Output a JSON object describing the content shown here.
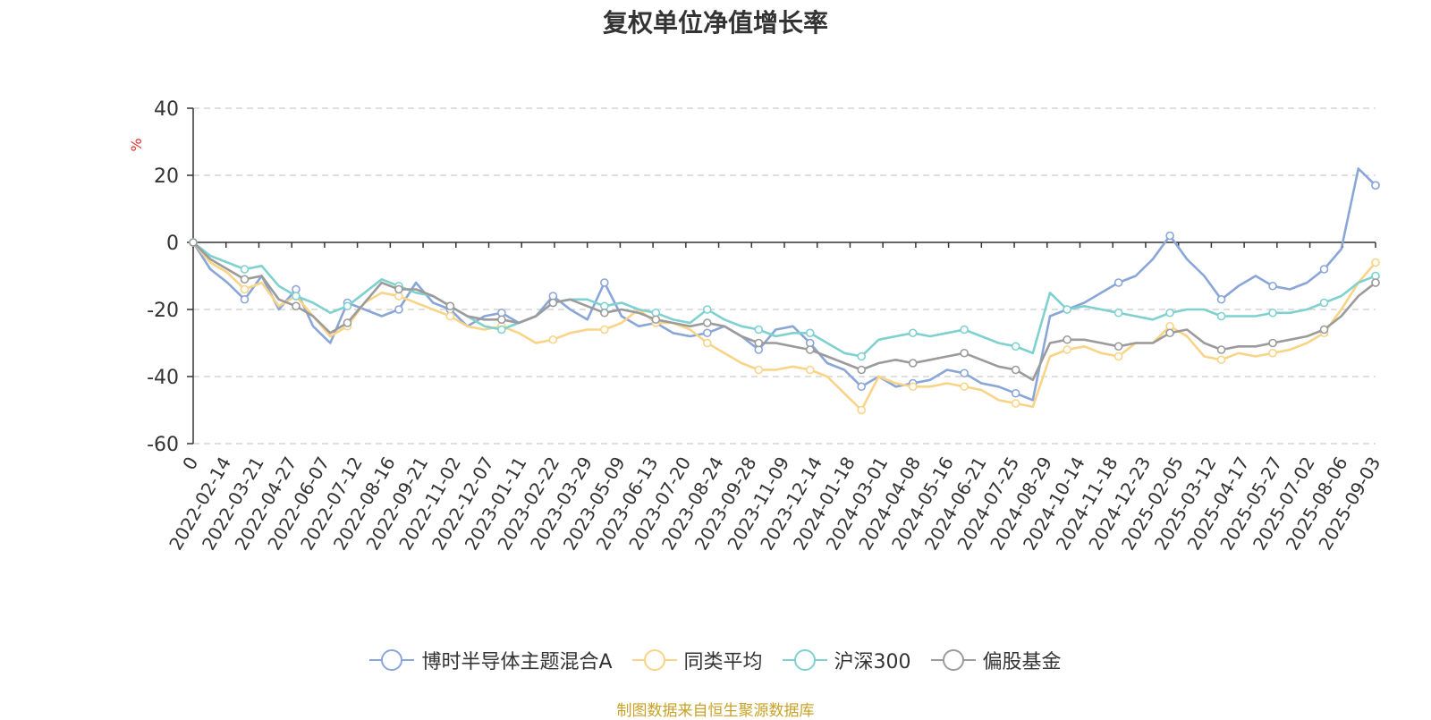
{
  "title": "复权单位净值增长率",
  "source": "制图数据来自恒生聚源数据库",
  "chart_data": {
    "type": "line",
    "title": "复权单位净值增长率",
    "ylabel": "%",
    "ylim": [
      -60,
      40
    ],
    "yticks": [
      -60,
      -40,
      -20,
      0,
      20,
      40
    ],
    "grid": true,
    "legend_position": "bottom",
    "x_labels": [
      "0",
      "2022-02-14",
      "2022-03-21",
      "2022-04-27",
      "2022-06-07",
      "2022-07-12",
      "2022-08-16",
      "2022-09-21",
      "2022-11-02",
      "2022-12-07",
      "2023-01-11",
      "2023-02-22",
      "2023-03-29",
      "2023-05-09",
      "2023-06-13",
      "2023-07-20",
      "2023-08-24",
      "2023-09-28",
      "2023-11-09",
      "2023-12-14",
      "2024-01-18",
      "2024-03-01",
      "2024-04-08",
      "2024-05-16",
      "2024-06-21",
      "2024-07-25",
      "2024-08-29",
      "2024-10-14",
      "2024-11-18",
      "2024-12-23",
      "2025-02-05",
      "2025-03-12",
      "2025-04-17",
      "2025-05-27",
      "2025-07-02",
      "2025-08-06",
      "2025-09-03"
    ],
    "series": [
      {
        "name": "博时半导体主题混合A",
        "color": "#8aa6d8",
        "values": [
          0,
          -8,
          -12,
          -17,
          -10,
          -20,
          -14,
          -25,
          -30,
          -18,
          -20,
          -22,
          -20,
          -12,
          -18,
          -20,
          -25,
          -22,
          -21,
          -24,
          -22,
          -16,
          -20,
          -23,
          -12,
          -22,
          -25,
          -24,
          -27,
          -28,
          -27,
          -25,
          -28,
          -32,
          -26,
          -25,
          -30,
          -36,
          -38,
          -43,
          -40,
          -43,
          -42,
          -41,
          -38,
          -39,
          -42,
          -43,
          -45,
          -47,
          -22,
          -20,
          -18,
          -15,
          -12,
          -10,
          -5,
          2,
          -5,
          -10,
          -17,
          -13,
          -10,
          -13,
          -14,
          -12,
          -8,
          -2,
          22,
          17
        ]
      },
      {
        "name": "同类平均",
        "color": "#f9d487",
        "values": [
          0,
          -6,
          -9,
          -14,
          -12,
          -19,
          -16,
          -22,
          -28,
          -25,
          -18,
          -15,
          -16,
          -18,
          -20,
          -22,
          -25,
          -26,
          -25,
          -27,
          -30,
          -29,
          -27,
          -26,
          -26,
          -24,
          -20,
          -24,
          -24,
          -26,
          -30,
          -33,
          -36,
          -38,
          -38,
          -37,
          -38,
          -40,
          -45,
          -50,
          -40,
          -42,
          -43,
          -43,
          -42,
          -43,
          -44,
          -47,
          -48,
          -49,
          -34,
          -32,
          -31,
          -33,
          -34,
          -30,
          -30,
          -25,
          -28,
          -34,
          -35,
          -33,
          -34,
          -33,
          -32,
          -30,
          -27,
          -20,
          -12,
          -6
        ]
      },
      {
        "name": "沪深300",
        "color": "#7fd1cf",
        "values": [
          0,
          -4,
          -6,
          -8,
          -7,
          -13,
          -16,
          -18,
          -21,
          -19,
          -15,
          -11,
          -13,
          -15,
          -16,
          -19,
          -22,
          -25,
          -26,
          -24,
          -22,
          -18,
          -17,
          -17,
          -19,
          -18,
          -20,
          -21,
          -23,
          -24,
          -20,
          -23,
          -25,
          -26,
          -28,
          -27,
          -27,
          -30,
          -33,
          -34,
          -29,
          -28,
          -27,
          -28,
          -27,
          -26,
          -28,
          -30,
          -31,
          -33,
          -15,
          -20,
          -19,
          -20,
          -21,
          -22,
          -23,
          -21,
          -20,
          -20,
          -22,
          -22,
          -22,
          -21,
          -21,
          -20,
          -18,
          -16,
          -12,
          -10
        ]
      },
      {
        "name": "偏股基金",
        "color": "#9b9b9b",
        "values": [
          0,
          -5,
          -8,
          -11,
          -10,
          -17,
          -19,
          -22,
          -27,
          -24,
          -18,
          -12,
          -14,
          -14,
          -16,
          -19,
          -22,
          -23,
          -23,
          -24,
          -22,
          -18,
          -17,
          -19,
          -21,
          -20,
          -21,
          -23,
          -24,
          -25,
          -24,
          -25,
          -28,
          -30,
          -30,
          -31,
          -32,
          -34,
          -36,
          -38,
          -36,
          -35,
          -36,
          -35,
          -34,
          -33,
          -35,
          -37,
          -38,
          -41,
          -30,
          -29,
          -29,
          -30,
          -31,
          -30,
          -30,
          -27,
          -26,
          -30,
          -32,
          -31,
          -31,
          -30,
          -29,
          -28,
          -26,
          -22,
          -16,
          -12
        ]
      }
    ]
  }
}
